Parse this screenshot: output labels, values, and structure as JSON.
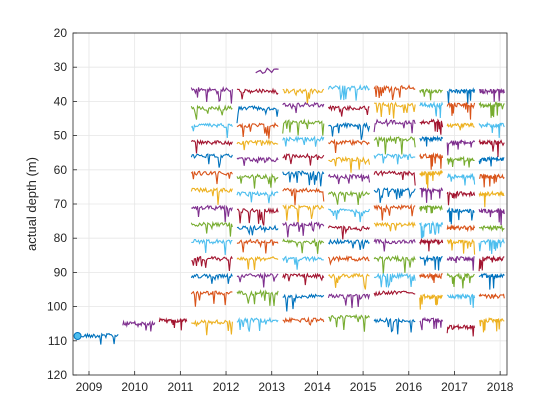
{
  "chart_data": {
    "type": "line",
    "title": "",
    "xlabel": "",
    "ylabel": "actual depth (m)",
    "xlim": [
      2008.65,
      2018.15
    ],
    "ylim": [
      20,
      120
    ],
    "y_reversed": true,
    "grid": true,
    "legend": "none",
    "xticks": [
      "2009",
      "2010",
      "2011",
      "2012",
      "2013",
      "2014",
      "2015",
      "2016",
      "2017",
      "2018"
    ],
    "yticks": [
      "20",
      "30",
      "40",
      "50",
      "60",
      "70",
      "80",
      "90",
      "100",
      "110",
      "120"
    ],
    "palette": [
      "#0072BD",
      "#D95319",
      "#EDB120",
      "#7E2F8E",
      "#77AC30",
      "#4DBEEE",
      "#A2142F"
    ],
    "deployment_years": [
      2008.7,
      2009.7,
      2010.5,
      2011.2,
      2012.2,
      2013.2,
      2014.2,
      2015.2,
      2016.2,
      2016.8,
      2017.5,
      2018.15
    ],
    "sensor_series": [
      {
        "depths": [
          108.5,
          105,
          104,
          104.5,
          104,
          104,
          103,
          104,
          104,
          106,
          104,
          105
        ],
        "active": [
          1,
          1,
          1,
          1,
          1,
          1,
          1,
          1,
          1,
          1,
          1,
          0
        ]
      },
      {
        "depths": [
          null,
          null,
          null,
          36.5,
          37,
          37,
          36,
          36,
          37,
          37,
          37,
          0
        ],
        "active": [
          0,
          0,
          1,
          1,
          1,
          1,
          1,
          1,
          1,
          1,
          1,
          0
        ]
      },
      {
        "depths": [
          null,
          null,
          null,
          42,
          42,
          41,
          42,
          41,
          41,
          41,
          41,
          0
        ],
        "active": [
          0,
          0,
          0,
          1,
          1,
          1,
          1,
          1,
          1,
          1,
          1,
          0
        ]
      },
      {
        "depths": [
          null,
          null,
          null,
          47,
          47,
          46,
          47,
          46,
          46,
          47,
          47,
          0
        ],
        "active": [
          0,
          0,
          0,
          1,
          1,
          1,
          1,
          1,
          1,
          1,
          1,
          0
        ]
      },
      {
        "depths": [
          null,
          null,
          null,
          52,
          52,
          51,
          52,
          51,
          51,
          52,
          52,
          0
        ],
        "active": [
          0,
          0,
          0,
          1,
          1,
          1,
          1,
          1,
          1,
          1,
          1,
          0
        ]
      },
      {
        "depths": [
          null,
          null,
          null,
          56,
          57,
          56,
          57,
          56,
          56,
          57,
          57,
          0
        ],
        "active": [
          0,
          0,
          0,
          1,
          1,
          1,
          1,
          1,
          1,
          1,
          1,
          0
        ]
      },
      {
        "depths": [
          null,
          null,
          null,
          61,
          62,
          61,
          62,
          61,
          61,
          62,
          62,
          0
        ],
        "active": [
          0,
          0,
          0,
          1,
          1,
          1,
          1,
          1,
          1,
          1,
          1,
          0
        ]
      },
      {
        "depths": [
          null,
          null,
          null,
          66,
          67,
          66,
          67,
          66,
          66,
          67,
          67,
          0
        ],
        "active": [
          0,
          0,
          0,
          1,
          1,
          1,
          1,
          1,
          1,
          1,
          1,
          0
        ]
      },
      {
        "depths": [
          null,
          null,
          null,
          71,
          72,
          71,
          72,
          71,
          71,
          72,
          72,
          0
        ],
        "active": [
          0,
          0,
          0,
          1,
          1,
          1,
          1,
          1,
          1,
          1,
          1,
          0
        ]
      },
      {
        "depths": [
          null,
          null,
          null,
          76,
          77,
          76,
          77,
          76,
          76,
          77,
          77,
          0
        ],
        "active": [
          0,
          0,
          0,
          1,
          1,
          1,
          1,
          1,
          1,
          1,
          1,
          0
        ]
      },
      {
        "depths": [
          null,
          null,
          null,
          81,
          81,
          81,
          81,
          81,
          81,
          81,
          81,
          0
        ],
        "active": [
          0,
          0,
          0,
          1,
          1,
          1,
          1,
          1,
          1,
          1,
          1,
          0
        ]
      },
      {
        "depths": [
          null,
          null,
          null,
          86,
          86,
          86,
          86,
          86,
          86,
          86,
          86,
          0
        ],
        "active": [
          0,
          0,
          0,
          1,
          1,
          1,
          1,
          1,
          1,
          1,
          1,
          0
        ]
      },
      {
        "depths": [
          null,
          null,
          null,
          91,
          91,
          91,
          91,
          91,
          91,
          91,
          91,
          0
        ],
        "active": [
          0,
          0,
          0,
          1,
          1,
          1,
          1,
          1,
          1,
          1,
          1,
          0
        ]
      },
      {
        "depths": [
          null,
          null,
          null,
          96,
          96,
          97,
          97,
          96,
          97,
          97,
          97,
          0
        ],
        "active": [
          0,
          0,
          0,
          1,
          1,
          1,
          1,
          1,
          1,
          1,
          1,
          0
        ]
      }
    ],
    "annotations": [
      {
        "x": 2008.75,
        "y": 108.6,
        "kind": "marker"
      },
      {
        "x": 2012.9,
        "y": 31,
        "kind": "short-deployment"
      }
    ]
  }
}
